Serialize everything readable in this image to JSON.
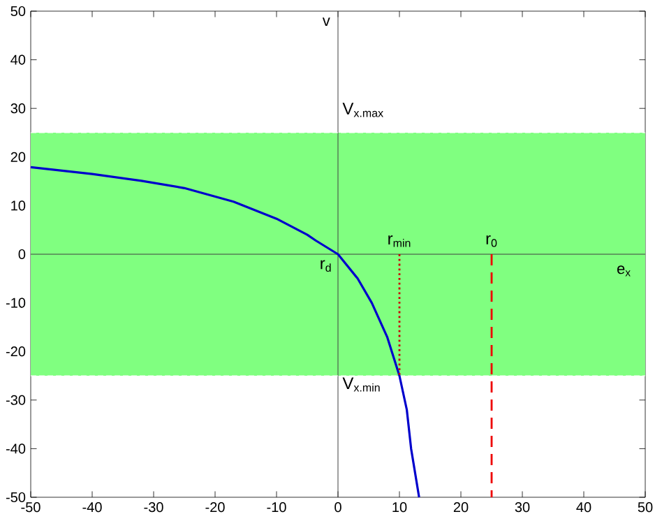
{
  "chart_data": {
    "type": "line",
    "xlabel": "e$_{x}$",
    "ylabel": "v",
    "xlim": [
      -50,
      50
    ],
    "ylim": [
      -50,
      50
    ],
    "xticks": [
      -50,
      -40,
      -30,
      -20,
      -10,
      0,
      10,
      20,
      30,
      40,
      50
    ],
    "yticks": [
      -50,
      -40,
      -30,
      -20,
      -10,
      0,
      10,
      20,
      30,
      40,
      50
    ],
    "series": [
      {
        "color": "#0000cc",
        "line_style": "solid",
        "x": [
          -50,
          -40,
          -32,
          -25,
          -17,
          -10,
          -5,
          -3.6,
          0,
          3.2,
          5.5,
          8,
          10,
          11.2,
          11.9,
          13.2
        ],
        "values": [
          17.9,
          16.5,
          15.1,
          13.6,
          10.8,
          7.3,
          4,
          2.8,
          0,
          -5,
          -10,
          -17,
          -25,
          -32,
          -40,
          -50
        ]
      },
      {
        "color": "#cc0000",
        "line_style": "dotted",
        "x": [
          10,
          10
        ],
        "values": [
          0,
          -25
        ]
      },
      {
        "color": "#ee0000",
        "line_style": "dashed",
        "x": [
          25,
          25
        ],
        "values": [
          0,
          -50
        ]
      }
    ],
    "bands": [
      {
        "axis": "y",
        "from": -25,
        "to": 25,
        "color": "#80ff80"
      }
    ],
    "ref_lines": [
      {
        "axis": "y",
        "value": 25,
        "color": "#ffffff",
        "line_style": "dashed"
      },
      {
        "axis": "y",
        "value": -25,
        "color": "#ffffff",
        "line_style": "dashed"
      }
    ],
    "annotations": [
      {
        "text": "V$_{x.max}$",
        "x": 0,
        "y": 25
      },
      {
        "text": "V$_{x.min}$",
        "x": 0,
        "y": -25
      },
      {
        "text": "r$_{d}$",
        "x": 0,
        "y": 0
      },
      {
        "text": "r$_{min}$",
        "x": 10,
        "y": 0
      },
      {
        "text": "r$_{0}$",
        "x": 25,
        "y": 0
      }
    ]
  }
}
